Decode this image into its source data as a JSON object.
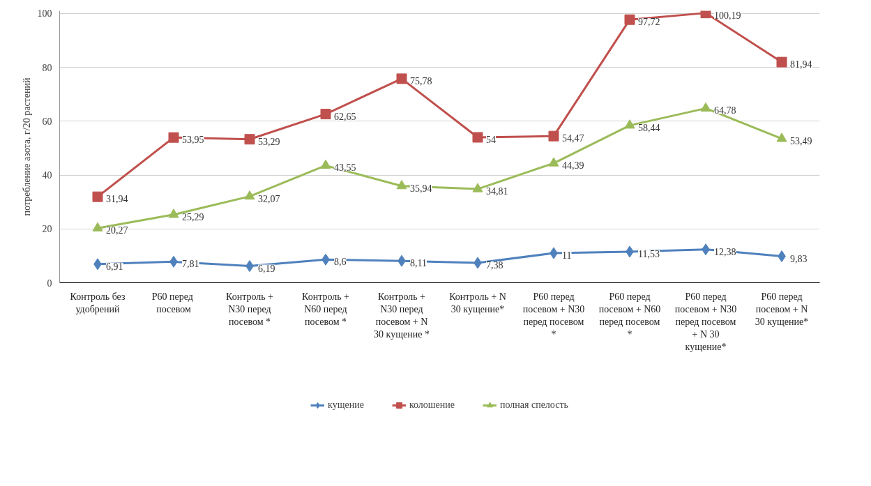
{
  "chart_data": {
    "type": "line",
    "ylabel": "потребление азота, г/20 растений",
    "categories": [
      "Контроль без удобрений",
      "Р60  перед посевом",
      "Контроль + N30 перед посевом *",
      "Контроль + N60 перед посевом *",
      "Контроль + N30 перед посевом + N 30 кущение *",
      "Контроль + N 30 кущение*",
      "Р60 перед посевом + N30 перед посевом *",
      "Р60 перед посевом + N60 перед посевом *",
      "Р60 перед посевом + N30 перед посевом + N 30 кущение*",
      "Р60 перед посевом + N 30 кущение*"
    ],
    "series": [
      {
        "name": "кущение",
        "color": "#4f81bd",
        "marker": "diamond",
        "values": [
          6.91,
          7.81,
          6.19,
          8.6,
          8.11,
          7.38,
          11,
          11.53,
          12.38,
          9.83
        ],
        "value_labels": [
          "6,91",
          "7,81",
          "6,19",
          "8,6",
          "8,11",
          "7,38",
          "11",
          "11,53",
          "12,38",
          "9,83"
        ]
      },
      {
        "name": "колошение",
        "color": "#c0504d",
        "marker": "square",
        "values": [
          31.94,
          53.95,
          53.29,
          62.65,
          75.78,
          54,
          54.47,
          97.72,
          100.19,
          81.94
        ],
        "value_labels": [
          "31,94",
          "53,95",
          "53,29",
          "62,65",
          "75,78",
          "54",
          "54,47",
          "97,72",
          "100,19",
          "81,94"
        ]
      },
      {
        "name": "полная спелость",
        "color": "#9bbb59",
        "marker": "triangle",
        "values": [
          20.27,
          25.29,
          32.07,
          43.55,
          35.94,
          34.81,
          44.39,
          58.44,
          64.78,
          53.49
        ],
        "value_labels": [
          "20,27",
          "25,29",
          "32,07",
          "43,55",
          "35,94",
          "34,81",
          "44,39",
          "58,44",
          "64,78",
          "53,49"
        ]
      }
    ],
    "ylim": [
      0,
      101
    ],
    "yticks": [
      0,
      20,
      40,
      60,
      80,
      100
    ],
    "grid": "y",
    "legend": "bottom",
    "line_style": "solid"
  }
}
